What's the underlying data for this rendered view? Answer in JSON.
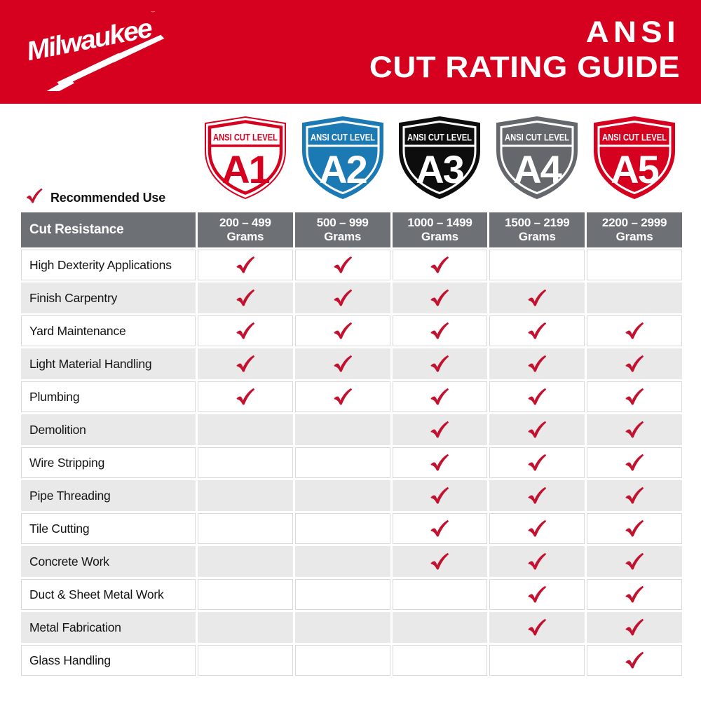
{
  "colors": {
    "brand_red": "#d6011f",
    "check_red": "#c31230",
    "header_gray": "#6d7074",
    "alt_row_gray": "#e9e9ea",
    "cell_border_gray": "#d9d9d9",
    "shield_blue": "#1b79b4",
    "shield_black": "#0d0d0d",
    "shield_gray": "#64676b",
    "white": "#ffffff"
  },
  "icons": {
    "check": "✓",
    "registered_mark": "®",
    "lightning_bolt": "⚡"
  },
  "banner": {
    "logo_text": "Milwaukee",
    "registered_mark": "®",
    "title_line1": "ANSI",
    "title_line2": "CUT RATING GUIDE"
  },
  "shields": {
    "band_label": "ANSI CUT LEVEL",
    "items": [
      {
        "level": "A1",
        "style": "outline",
        "color": "#d6011f"
      },
      {
        "level": "A2",
        "style": "solid",
        "color": "#1b79b4"
      },
      {
        "level": "A3",
        "style": "solid",
        "color": "#0d0d0d"
      },
      {
        "level": "A4",
        "style": "solid",
        "color": "#64676b"
      },
      {
        "level": "A5",
        "style": "solid",
        "color": "#d6011f"
      }
    ]
  },
  "legend": {
    "label": "Recommended Use"
  },
  "table": {
    "header": {
      "row_label": "Cut Resistance",
      "columns": [
        {
          "range": "200 – 499",
          "unit": "Grams"
        },
        {
          "range": "500 – 999",
          "unit": "Grams"
        },
        {
          "range": "1000 – 1499",
          "unit": "Grams"
        },
        {
          "range": "1500 – 2199",
          "unit": "Grams"
        },
        {
          "range": "2200 – 2999",
          "unit": "Grams"
        }
      ]
    },
    "rows": [
      {
        "label": "High Dexterity Applications",
        "checks": [
          true,
          true,
          true,
          false,
          false
        ]
      },
      {
        "label": "Finish Carpentry",
        "checks": [
          true,
          true,
          true,
          true,
          false
        ]
      },
      {
        "label": "Yard Maintenance",
        "checks": [
          true,
          true,
          true,
          true,
          true
        ]
      },
      {
        "label": "Light Material Handling",
        "checks": [
          true,
          true,
          true,
          true,
          true
        ]
      },
      {
        "label": "Plumbing",
        "checks": [
          true,
          true,
          true,
          true,
          true
        ]
      },
      {
        "label": "Demolition",
        "checks": [
          false,
          false,
          true,
          true,
          true
        ]
      },
      {
        "label": "Wire Stripping",
        "checks": [
          false,
          false,
          true,
          true,
          true
        ]
      },
      {
        "label": "Pipe Threading",
        "checks": [
          false,
          false,
          true,
          true,
          true
        ]
      },
      {
        "label": "Tile Cutting",
        "checks": [
          false,
          false,
          true,
          true,
          true
        ]
      },
      {
        "label": "Concrete Work",
        "checks": [
          false,
          false,
          true,
          true,
          true
        ]
      },
      {
        "label": "Duct & Sheet Metal Work",
        "checks": [
          false,
          false,
          false,
          true,
          true
        ]
      },
      {
        "label": "Metal Fabrication",
        "checks": [
          false,
          false,
          false,
          true,
          true
        ]
      },
      {
        "label": "Glass Handling",
        "checks": [
          false,
          false,
          false,
          false,
          true
        ]
      }
    ]
  }
}
